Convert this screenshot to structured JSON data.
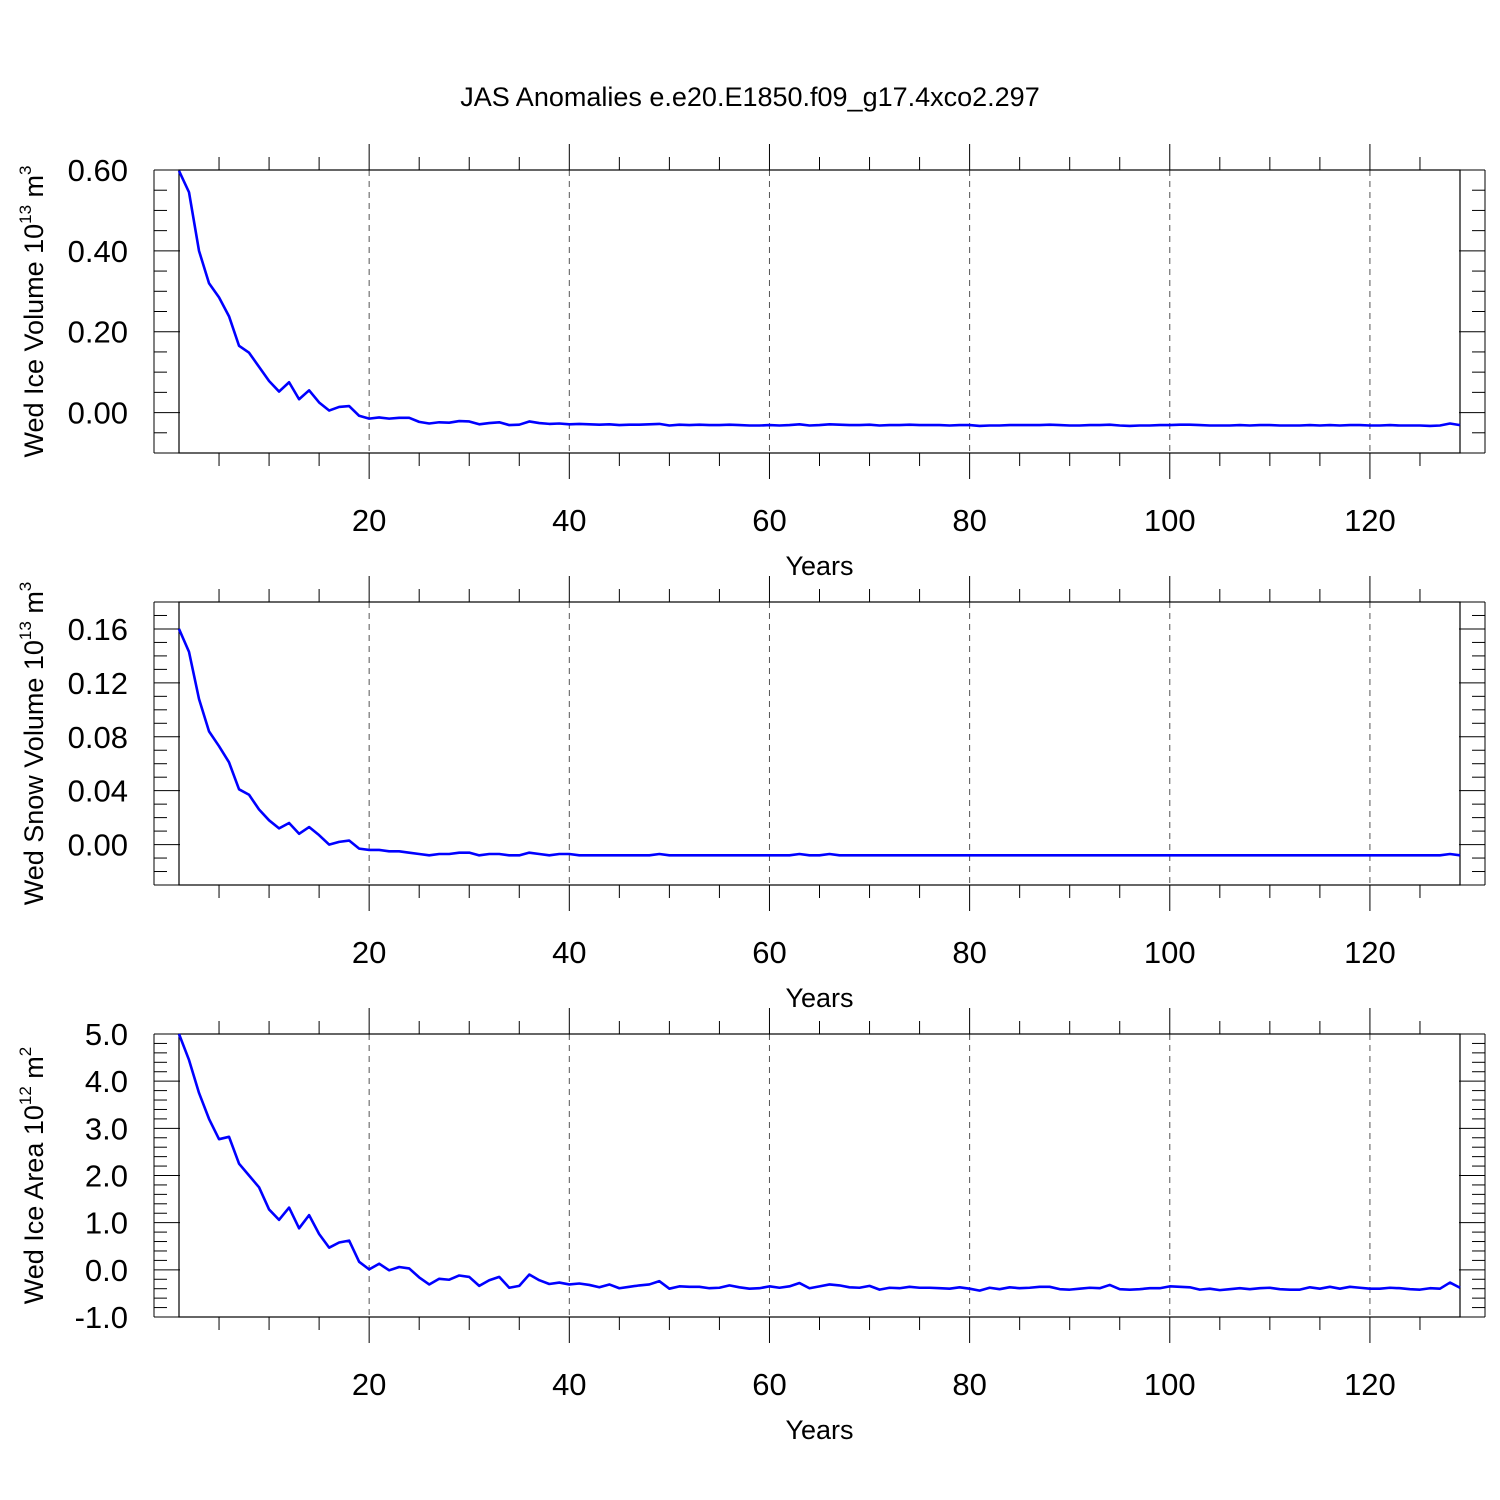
{
  "title": "JAS Anomalies e.e20.E1850.f09_g17.4xco2.297",
  "series_color": "#0000ff",
  "chart_data": [
    {
      "type": "line",
      "ylabel": "Wed Ice Volume 10",
      "ylabel_exp": "13",
      "ylabel_unit": " m",
      "ylabel_unit_exp": "3",
      "xlabel": "Years",
      "xlim": [
        1,
        129
      ],
      "ylim": [
        -0.1,
        0.6
      ],
      "xticks": [
        20,
        40,
        60,
        80,
        100,
        120
      ],
      "xtick_labels": [
        "20",
        "40",
        "60",
        "80",
        "100",
        "120"
      ],
      "yticks": [
        0.0,
        0.2,
        0.4,
        0.6
      ],
      "ytick_labels": [
        "0.00",
        "0.20",
        "0.40",
        "0.60"
      ],
      "grid": "vertical dashed at x ticks",
      "values": [
        0.598,
        0.545,
        0.4,
        0.32,
        0.285,
        0.238,
        0.165,
        0.148,
        0.113,
        0.078,
        0.052,
        0.075,
        0.033,
        0.055,
        0.025,
        0.005,
        0.014,
        0.016,
        -0.008,
        -0.015,
        -0.012,
        -0.015,
        -0.013,
        -0.013,
        -0.023,
        -0.027,
        -0.024,
        -0.025,
        -0.021,
        -0.022,
        -0.029,
        -0.026,
        -0.024,
        -0.031,
        -0.03,
        -0.022,
        -0.026,
        -0.028,
        -0.027,
        -0.029,
        -0.028,
        -0.029,
        -0.03,
        -0.029,
        -0.031,
        -0.03,
        -0.03,
        -0.029,
        -0.028,
        -0.032,
        -0.03,
        -0.031,
        -0.03,
        -0.031,
        -0.031,
        -0.03,
        -0.031,
        -0.032,
        -0.032,
        -0.031,
        -0.032,
        -0.031,
        -0.029,
        -0.032,
        -0.031,
        -0.029,
        -0.03,
        -0.031,
        -0.031,
        -0.03,
        -0.032,
        -0.031,
        -0.031,
        -0.03,
        -0.031,
        -0.031,
        -0.031,
        -0.032,
        -0.031,
        -0.031,
        -0.033,
        -0.032,
        -0.032,
        -0.031,
        -0.031,
        -0.031,
        -0.031,
        -0.03,
        -0.031,
        -0.032,
        -0.032,
        -0.031,
        -0.031,
        -0.03,
        -0.032,
        -0.033,
        -0.032,
        -0.032,
        -0.031,
        -0.031,
        -0.03,
        -0.03,
        -0.031,
        -0.032,
        -0.032,
        -0.032,
        -0.031,
        -0.032,
        -0.031,
        -0.031,
        -0.032,
        -0.032,
        -0.032,
        -0.031,
        -0.032,
        -0.031,
        -0.032,
        -0.031,
        -0.031,
        -0.032,
        -0.032,
        -0.031,
        -0.032,
        -0.032,
        -0.032,
        -0.033,
        -0.032,
        -0.027,
        -0.031
      ]
    },
    {
      "type": "line",
      "ylabel": "Wed Snow Volume 10",
      "ylabel_exp": "13",
      "ylabel_unit": " m",
      "ylabel_unit_exp": "3",
      "xlabel": "Years",
      "xlim": [
        1,
        129
      ],
      "ylim": [
        -0.03,
        0.18
      ],
      "xticks": [
        20,
        40,
        60,
        80,
        100,
        120
      ],
      "xtick_labels": [
        "20",
        "40",
        "60",
        "80",
        "100",
        "120"
      ],
      "yticks": [
        0.0,
        0.04,
        0.08,
        0.12,
        0.16
      ],
      "ytick_labels": [
        "0.00",
        "0.04",
        "0.08",
        "0.12",
        "0.16"
      ],
      "grid": "vertical dashed at x ticks",
      "values": [
        0.16,
        0.143,
        0.108,
        0.084,
        0.073,
        0.061,
        0.041,
        0.037,
        0.026,
        0.018,
        0.012,
        0.016,
        0.008,
        0.013,
        0.007,
        0.0,
        0.002,
        0.003,
        -0.003,
        -0.004,
        -0.004,
        -0.005,
        -0.005,
        -0.006,
        -0.007,
        -0.008,
        -0.007,
        -0.007,
        -0.006,
        -0.006,
        -0.008,
        -0.007,
        -0.007,
        -0.008,
        -0.008,
        -0.006,
        -0.007,
        -0.008,
        -0.007,
        -0.007,
        -0.008,
        -0.008,
        -0.008,
        -0.008,
        -0.008,
        -0.008,
        -0.008,
        -0.008,
        -0.007,
        -0.008,
        -0.008,
        -0.008,
        -0.008,
        -0.008,
        -0.008,
        -0.008,
        -0.008,
        -0.008,
        -0.008,
        -0.008,
        -0.008,
        -0.008,
        -0.007,
        -0.008,
        -0.008,
        -0.007,
        -0.008,
        -0.008,
        -0.008,
        -0.008,
        -0.008,
        -0.008,
        -0.008,
        -0.008,
        -0.008,
        -0.008,
        -0.008,
        -0.008,
        -0.008,
        -0.008,
        -0.008,
        -0.008,
        -0.008,
        -0.008,
        -0.008,
        -0.008,
        -0.008,
        -0.008,
        -0.008,
        -0.008,
        -0.008,
        -0.008,
        -0.008,
        -0.008,
        -0.008,
        -0.008,
        -0.008,
        -0.008,
        -0.008,
        -0.008,
        -0.008,
        -0.008,
        -0.008,
        -0.008,
        -0.008,
        -0.008,
        -0.008,
        -0.008,
        -0.008,
        -0.008,
        -0.008,
        -0.008,
        -0.008,
        -0.008,
        -0.008,
        -0.008,
        -0.008,
        -0.008,
        -0.008,
        -0.008,
        -0.008,
        -0.008,
        -0.008,
        -0.008,
        -0.008,
        -0.008,
        -0.008,
        -0.007,
        -0.008
      ]
    },
    {
      "type": "line",
      "ylabel": "Wed Ice Area 10",
      "ylabel_exp": "12",
      "ylabel_unit": " m",
      "ylabel_unit_exp": "2",
      "xlabel": "Years",
      "xlim": [
        1,
        129
      ],
      "ylim": [
        -1.0,
        5.0
      ],
      "xticks": [
        20,
        40,
        60,
        80,
        100,
        120
      ],
      "xtick_labels": [
        "20",
        "40",
        "60",
        "80",
        "100",
        "120"
      ],
      "yticks": [
        -1.0,
        0.0,
        1.0,
        2.0,
        3.0,
        4.0,
        5.0
      ],
      "ytick_labels": [
        "-1.0",
        "0.0",
        "1.0",
        "2.0",
        "3.0",
        "4.0",
        "5.0"
      ],
      "grid": "vertical dashed at x ticks",
      "values": [
        5.0,
        4.45,
        3.75,
        3.2,
        2.77,
        2.82,
        2.25,
        2.0,
        1.75,
        1.28,
        1.06,
        1.32,
        0.88,
        1.16,
        0.76,
        0.47,
        0.58,
        0.62,
        0.17,
        0.01,
        0.13,
        -0.01,
        0.06,
        0.03,
        -0.16,
        -0.31,
        -0.19,
        -0.21,
        -0.12,
        -0.15,
        -0.34,
        -0.22,
        -0.15,
        -0.38,
        -0.34,
        -0.1,
        -0.22,
        -0.3,
        -0.27,
        -0.31,
        -0.29,
        -0.32,
        -0.37,
        -0.31,
        -0.39,
        -0.36,
        -0.33,
        -0.31,
        -0.24,
        -0.4,
        -0.35,
        -0.36,
        -0.36,
        -0.39,
        -0.38,
        -0.33,
        -0.37,
        -0.4,
        -0.39,
        -0.35,
        -0.38,
        -0.35,
        -0.28,
        -0.39,
        -0.35,
        -0.31,
        -0.33,
        -0.37,
        -0.38,
        -0.34,
        -0.42,
        -0.38,
        -0.39,
        -0.36,
        -0.38,
        -0.38,
        -0.39,
        -0.4,
        -0.37,
        -0.4,
        -0.44,
        -0.38,
        -0.41,
        -0.37,
        -0.39,
        -0.38,
        -0.36,
        -0.36,
        -0.41,
        -0.42,
        -0.4,
        -0.38,
        -0.39,
        -0.32,
        -0.41,
        -0.42,
        -0.41,
        -0.39,
        -0.39,
        -0.35,
        -0.36,
        -0.37,
        -0.42,
        -0.4,
        -0.43,
        -0.41,
        -0.39,
        -0.41,
        -0.39,
        -0.38,
        -0.41,
        -0.42,
        -0.42,
        -0.37,
        -0.4,
        -0.36,
        -0.4,
        -0.36,
        -0.38,
        -0.4,
        -0.4,
        -0.38,
        -0.39,
        -0.41,
        -0.42,
        -0.39,
        -0.4,
        -0.27,
        -0.38
      ]
    }
  ]
}
